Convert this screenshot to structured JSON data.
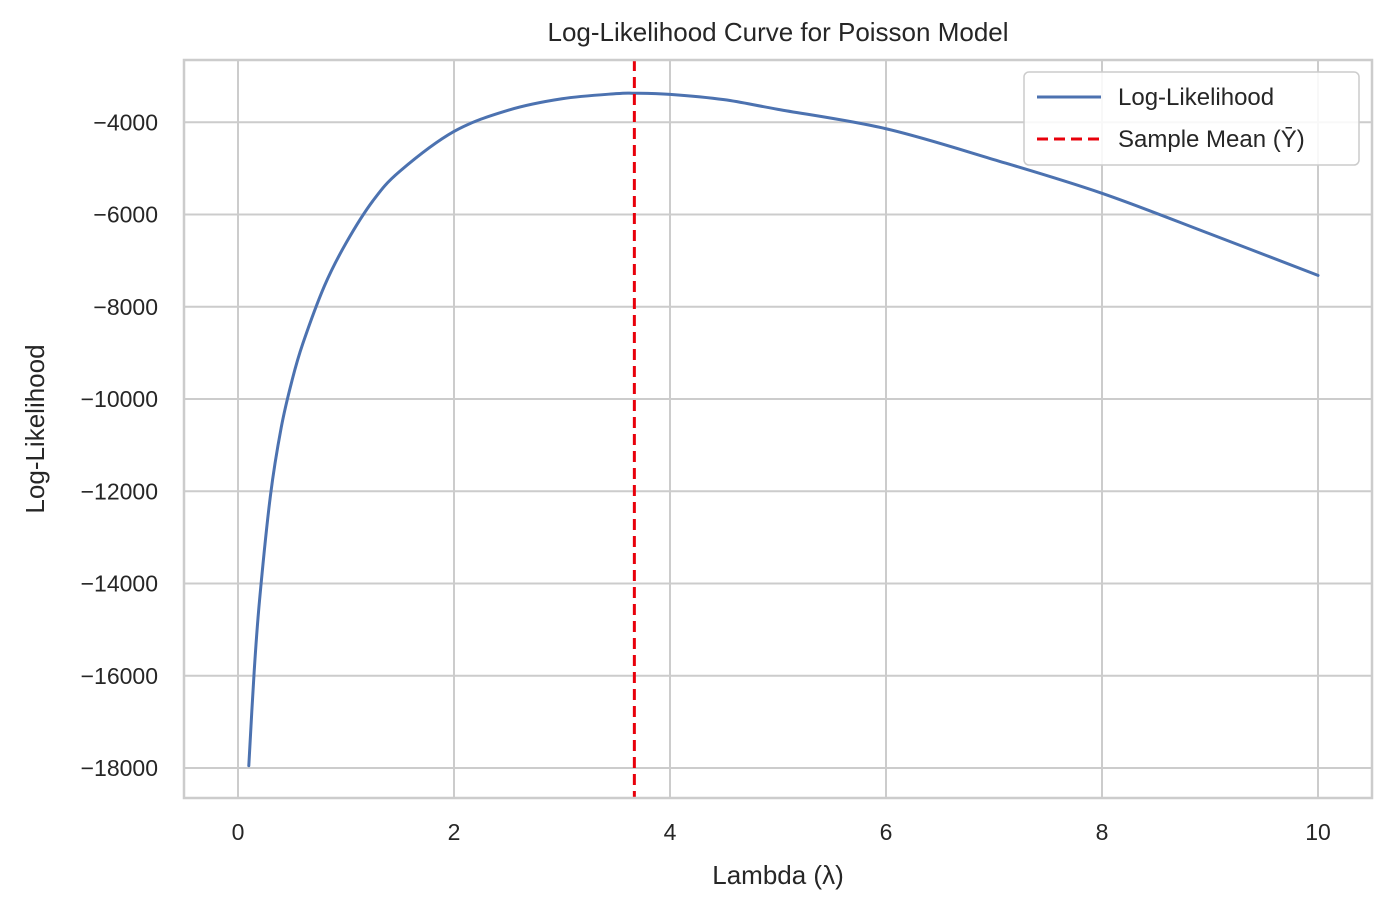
{
  "chart_data": {
    "type": "line",
    "title": "Log-Likelihood Curve for Poisson Model",
    "xlabel": "Lambda (λ)",
    "ylabel": "Log-Likelihood",
    "xlim": [
      -0.5,
      10.5
    ],
    "ylim": [
      -18650,
      -2650
    ],
    "xticks": [
      0,
      2,
      4,
      6,
      8,
      10
    ],
    "xtick_labels": [
      "0",
      "2",
      "4",
      "6",
      "8",
      "10"
    ],
    "yticks": [
      -4000,
      -6000,
      -8000,
      -10000,
      -12000,
      -14000,
      -16000,
      -18000
    ],
    "ytick_labels": [
      "−4000",
      "−6000",
      "−8000",
      "−10000",
      "−12000",
      "−14000",
      "−16000",
      "−18000"
    ],
    "grid": true,
    "legend_position": "top-right",
    "series": [
      {
        "name": "Log-Likelihood",
        "color": "#4c72b0",
        "style": "solid",
        "x": [
          0.1,
          0.15,
          0.2,
          0.3,
          0.4,
          0.5,
          0.6,
          0.8,
          1.0,
          1.25,
          1.5,
          2.0,
          2.5,
          3.0,
          3.5,
          3.67,
          4.0,
          4.5,
          5.0,
          6.0,
          7.0,
          8.0,
          9.0,
          10.0
        ],
        "y": [
          -17950,
          -15900,
          -14350,
          -12100,
          -10620,
          -9600,
          -8800,
          -7550,
          -6620,
          -5700,
          -5060,
          -4200,
          -3740,
          -3490,
          -3380,
          -3370,
          -3395,
          -3510,
          -3720,
          -4140,
          -4810,
          -5540,
          -6420,
          -7320
        ]
      }
    ],
    "vlines": [
      {
        "name": "Sample Mean (Ȳ)",
        "x": 3.67,
        "color": "#e8000b",
        "style": "dashed"
      }
    ]
  }
}
